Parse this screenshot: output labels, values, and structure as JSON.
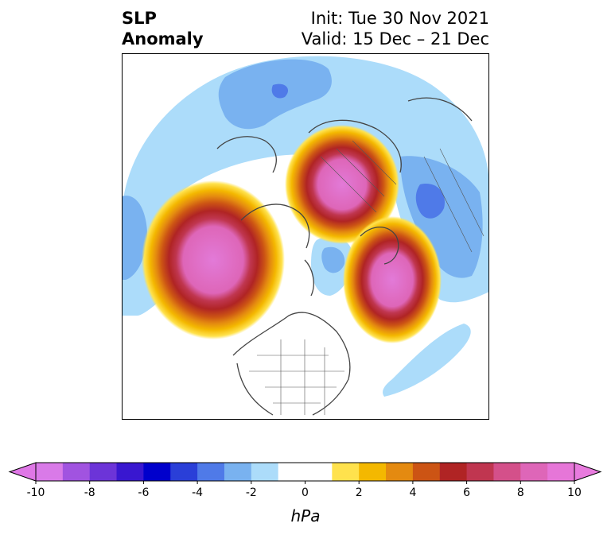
{
  "title": {
    "variable": "SLP",
    "field": "Anomaly",
    "init": "Init: Tue 30 Nov 2021",
    "valid": "Valid: 15 Dec – 21 Dec"
  },
  "map": {
    "projection": "polar-stereographic",
    "region": "northern-hemisphere",
    "features": {
      "positive_anomalies": [
        {
          "location": "eastern North Pacific / Gulf of Alaska",
          "peak_hpa": 10
        },
        {
          "location": "Barents-Kara Sea / northern Eurasia",
          "peak_hpa": 10
        },
        {
          "location": "Greenland / North Atlantic",
          "peak_hpa": 10
        }
      ],
      "negative_anomalies": [
        {
          "location": "northern Pacific / Aleutians-Asia",
          "approx_hpa": -4
        },
        {
          "location": "Europe / western Russia",
          "approx_hpa": -5
        },
        {
          "location": "central North Atlantic",
          "approx_hpa": -2
        },
        {
          "location": "Hudson Bay / Baffin region",
          "approx_hpa": -3
        }
      ]
    }
  },
  "colorbar": {
    "unit": "hPa",
    "extend": "both",
    "ticks": [
      "-10",
      "-8",
      "-6",
      "-4",
      "-2",
      "0",
      "2",
      "4",
      "6",
      "8",
      "10"
    ],
    "colors": [
      "#d97ae8",
      "#a153e0",
      "#6c34d8",
      "#3917d0",
      "#0000cc",
      "#2a3fd8",
      "#4f7ae8",
      "#79b2f0",
      "#acdcfa",
      "#ffffff",
      "#ffffff",
      "#ffe24d",
      "#f4b800",
      "#e48a10",
      "#cc5414",
      "#b02424",
      "#c03650",
      "#d4508a",
      "#de66b8",
      "#e676d8"
    ],
    "under_color": "#df77e6",
    "over_color": "#e87bde"
  }
}
